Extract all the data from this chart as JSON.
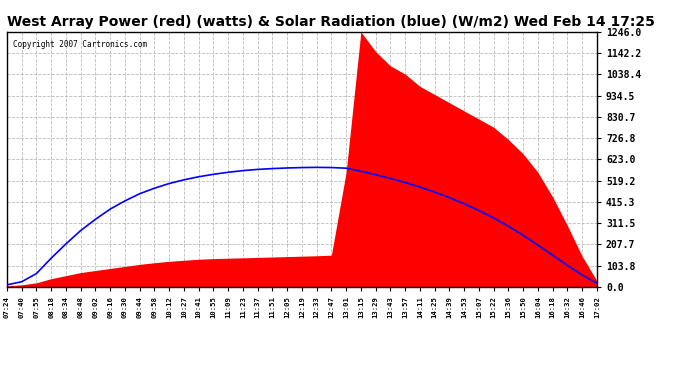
{
  "title": "West Array Power (red) (watts) & Solar Radiation (blue) (W/m2) Wed Feb 14 17:25",
  "copyright": "Copyright 2007 Cartronics.com",
  "ymin": 0.0,
  "ymax": 1246.0,
  "yticks": [
    0.0,
    103.8,
    207.7,
    311.5,
    415.3,
    519.2,
    623.0,
    726.8,
    830.7,
    934.5,
    1038.4,
    1142.2,
    1246.0
  ],
  "ytick_labels": [
    "0.0",
    "103.8",
    "207.7",
    "311.5",
    "415.3",
    "519.2",
    "623.0",
    "726.8",
    "830.7",
    "934.5",
    "1038.4",
    "1142.2",
    "1246.0"
  ],
  "background_color": "#ffffff",
  "plot_bg_color": "#ffffff",
  "grid_color": "#bbbbbb",
  "red_color": "#ff0000",
  "blue_color": "#0000ff",
  "title_fontsize": 10,
  "x_times": [
    "07:24",
    "07:40",
    "07:55",
    "08:18",
    "08:34",
    "08:48",
    "09:02",
    "09:16",
    "09:30",
    "09:44",
    "09:58",
    "10:12",
    "10:27",
    "10:41",
    "10:55",
    "11:09",
    "11:23",
    "11:37",
    "11:51",
    "12:05",
    "12:19",
    "12:33",
    "12:47",
    "13:01",
    "13:15",
    "13:29",
    "13:43",
    "13:57",
    "14:11",
    "14:25",
    "14:39",
    "14:53",
    "15:07",
    "15:22",
    "15:36",
    "15:50",
    "16:04",
    "16:18",
    "16:32",
    "16:46",
    "17:02"
  ],
  "red_values": [
    5,
    10,
    20,
    40,
    55,
    70,
    80,
    90,
    100,
    110,
    118,
    125,
    130,
    135,
    138,
    140,
    142,
    144,
    146,
    148,
    150,
    152,
    155,
    560,
    1246,
    1150,
    1080,
    1040,
    980,
    940,
    900,
    860,
    820,
    780,
    720,
    650,
    560,
    440,
    300,
    150,
    30
  ],
  "blue_values": [
    10,
    25,
    65,
    140,
    210,
    275,
    330,
    380,
    420,
    455,
    482,
    505,
    523,
    538,
    550,
    560,
    568,
    574,
    578,
    581,
    583,
    584,
    583,
    580,
    565,
    548,
    530,
    510,
    488,
    463,
    436,
    406,
    373,
    337,
    296,
    252,
    204,
    155,
    105,
    58,
    18
  ]
}
